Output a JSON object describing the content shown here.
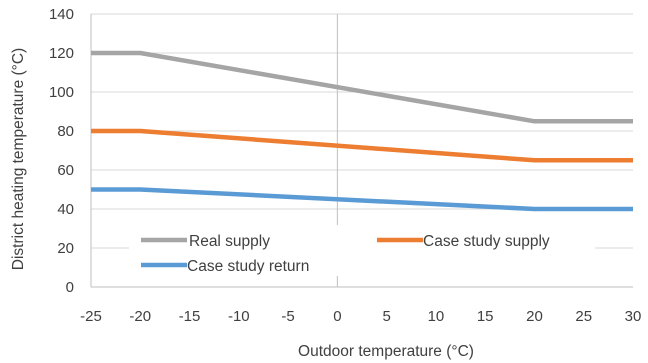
{
  "chart_data": {
    "type": "line",
    "title": "",
    "xlabel": "Outdoor temperature (°C)",
    "ylabel": "District heating temperature (°C)",
    "xlim": [
      -25,
      30
    ],
    "ylim": [
      0,
      140
    ],
    "x_ticks": [
      "-25",
      "-20",
      "-15",
      "-10",
      "-5",
      "0",
      "5",
      "10",
      "15",
      "20",
      "25",
      "30"
    ],
    "y_ticks": [
      "0",
      "20",
      "40",
      "60",
      "80",
      "100",
      "120",
      "140"
    ],
    "grid": "horizontal",
    "legend_position": "inside-bottom",
    "series": [
      {
        "name": "Real supply",
        "color": "#a5a5a5",
        "x": [
          -25,
          -20,
          20,
          30
        ],
        "y": [
          120,
          120,
          85,
          85
        ]
      },
      {
        "name": "Case study supply",
        "color": "#ed7d31",
        "x": [
          -25,
          -20,
          20,
          30
        ],
        "y": [
          80,
          80,
          65,
          65
        ]
      },
      {
        "name": "Case study return",
        "color": "#5b9bd5",
        "x": [
          -25,
          -20,
          20,
          30
        ],
        "y": [
          50,
          50,
          40,
          40
        ]
      }
    ]
  }
}
